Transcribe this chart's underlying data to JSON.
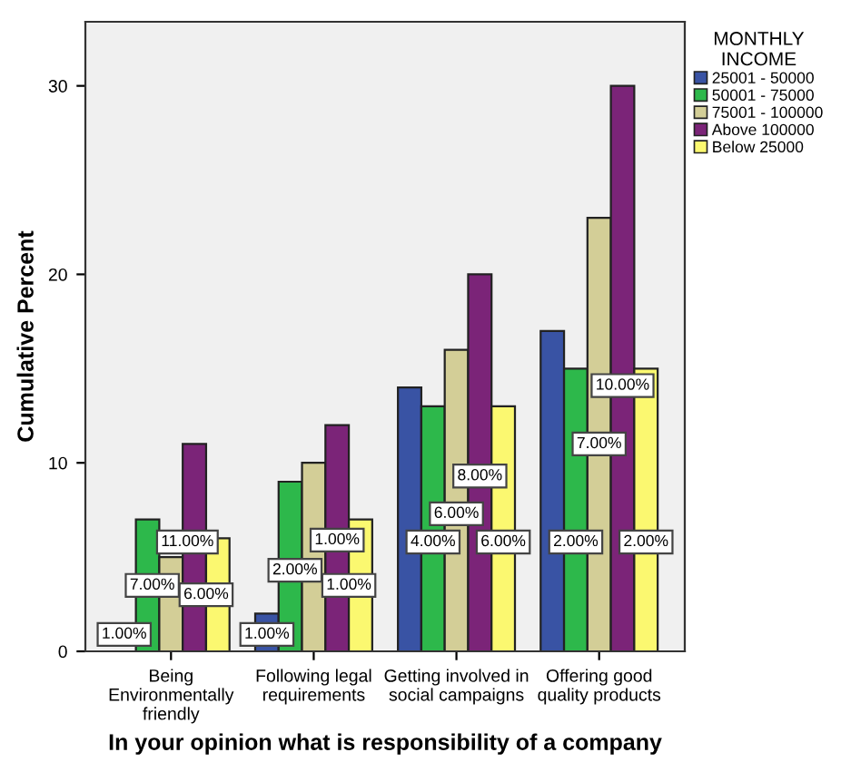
{
  "chart_data": {
    "type": "bar",
    "xlabel": "In your opinion what is responsibility of a company",
    "ylabel": "Cumulative Percent",
    "legend_title": "MONTHLY\nINCOME",
    "categories": [
      "Being\nEnvironmentally\nfriendly",
      "Following legal\nrequirements",
      "Getting involved in\nsocial campaigns",
      "Offering good\nquality products"
    ],
    "series": [
      {
        "name": "25001 - 50000",
        "color": "#3953a4",
        "values": [
          null,
          2,
          14,
          17
        ]
      },
      {
        "name": "50001 - 75000",
        "color": "#2db84b",
        "values": [
          7,
          9,
          13,
          15
        ]
      },
      {
        "name": "75001 - 100000",
        "color": "#d3ce97",
        "values": [
          5,
          10,
          16,
          23
        ]
      },
      {
        "name": "Above 100000",
        "color": "#7b2478",
        "values": [
          11,
          12,
          20,
          30
        ]
      },
      {
        "name": "Below 25000",
        "color": "#fbf870",
        "values": [
          6,
          7,
          13,
          15
        ]
      }
    ],
    "annotations": [
      "1.00%",
      "7.00%",
      "11.00%",
      "6.00%",
      "1.00%",
      "2.00%",
      "1.00%",
      "1.00%",
      "4.00%",
      "6.00%",
      "8.00%",
      "6.00%",
      "2.00%",
      "7.00%",
      "10.00%",
      "2.00%"
    ],
    "ylim": [
      0,
      33.4
    ],
    "yticks": [
      0,
      10,
      20,
      30
    ],
    "grid": false,
    "legend": "top right"
  }
}
